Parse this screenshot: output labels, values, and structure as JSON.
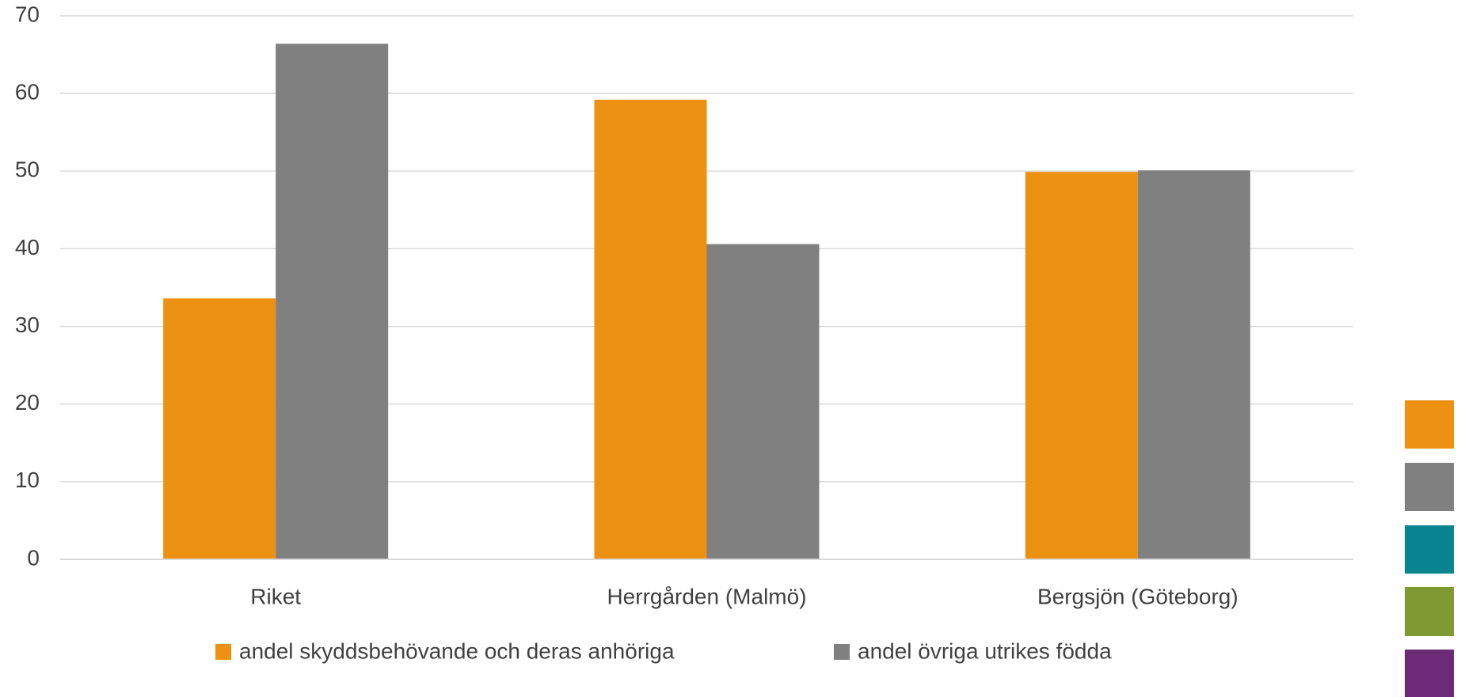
{
  "chart_data": {
    "type": "bar",
    "categories": [
      "Riket",
      "Herrgården (Malmö)",
      "Bergsjön (Göteborg)"
    ],
    "series": [
      {
        "name": "andel skyddsbehövande och deras anhöriga",
        "color": "#ec9112",
        "values": [
          33.6,
          59.2,
          49.9
        ]
      },
      {
        "name": "andel övriga utrikes födda",
        "color": "#808080",
        "values": [
          66.4,
          40.6,
          50.1
        ]
      }
    ],
    "ylim": [
      0,
      70
    ],
    "yticks": [
      0,
      10,
      20,
      30,
      40,
      50,
      60,
      70
    ],
    "grid": true,
    "legend": "bottom"
  }
}
